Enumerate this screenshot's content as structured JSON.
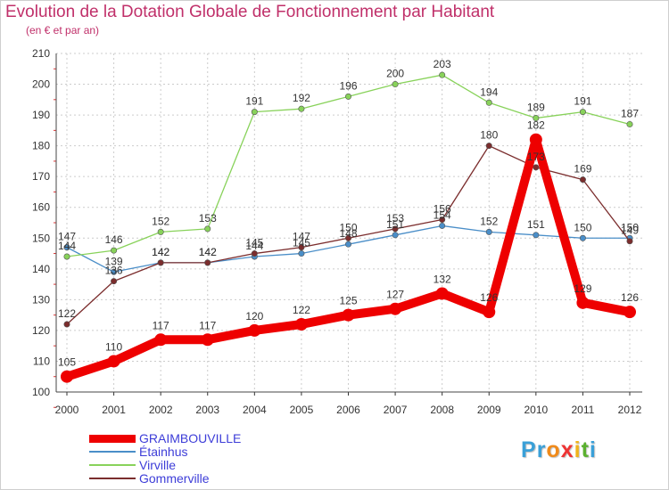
{
  "title": "Evolution de la Dotation Globale de Fonctionnement par Habitant",
  "subtitle": "(en € et par an)",
  "logo": {
    "text": "Proxiti",
    "letters": [
      "P",
      "r",
      "o",
      "x",
      "i",
      "t",
      "i"
    ],
    "colors": [
      "#3aa0d8",
      "#3aa0d8",
      "#f08a1a",
      "#e33",
      "#f0b41a",
      "#5bb030",
      "#3aa0d8"
    ]
  },
  "chart_data": {
    "type": "line",
    "title": "Evolution de la Dotation Globale de Fonctionnement par Habitant",
    "subtitle": "(en € et par an)",
    "x": [
      "2000",
      "2001",
      "2002",
      "2003",
      "2004",
      "2005",
      "2006",
      "2007",
      "2008",
      "2009",
      "2010",
      "2011",
      "2012"
    ],
    "ylim": [
      100,
      210
    ],
    "yticks": [
      "100",
      "110",
      "120",
      "130",
      "140",
      "150",
      "160",
      "170",
      "180",
      "190",
      "200",
      "210"
    ],
    "xlabel": "",
    "ylabel": "",
    "grid": true,
    "legend_position": "bottom-left",
    "series": [
      {
        "name": "GRAIMBOUVILLE",
        "color": "#ee0000",
        "emphasis": true,
        "values": [
          105,
          110,
          117,
          117,
          120,
          122,
          125,
          127,
          132,
          126,
          182,
          129,
          126
        ],
        "labels": [
          "105",
          "110",
          "117",
          "117",
          "120",
          "122",
          "125",
          "127",
          "132",
          "126",
          "182",
          "129",
          "126"
        ]
      },
      {
        "name": "Étainhus",
        "color": "#4a8ec8",
        "emphasis": false,
        "values": [
          147,
          139,
          142,
          142,
          144,
          145,
          148,
          151,
          154,
          152,
          151,
          150,
          150
        ],
        "labels": [
          "147",
          "139",
          "142",
          "142",
          "144",
          "145",
          "148",
          "151",
          "154",
          "152",
          "151",
          "150",
          "150"
        ]
      },
      {
        "name": "Virville",
        "color": "#88d25a",
        "emphasis": false,
        "values": [
          144,
          146,
          152,
          153,
          191,
          192,
          196,
          200,
          203,
          194,
          189,
          191,
          187
        ],
        "labels": [
          "144",
          "146",
          "152",
          "153",
          "191",
          "192",
          "196",
          "200",
          "203",
          "194",
          "189",
          "191",
          "187"
        ]
      },
      {
        "name": "Gommerville",
        "color": "#7b2d2d",
        "emphasis": false,
        "values": [
          122,
          136,
          142,
          142,
          145,
          147,
          150,
          153,
          156,
          180,
          173,
          169,
          149
        ],
        "labels": [
          "122",
          "136",
          "142",
          "142",
          "145",
          "147",
          "150",
          "153",
          "156",
          "180",
          "173",
          "169",
          "149"
        ]
      }
    ]
  }
}
